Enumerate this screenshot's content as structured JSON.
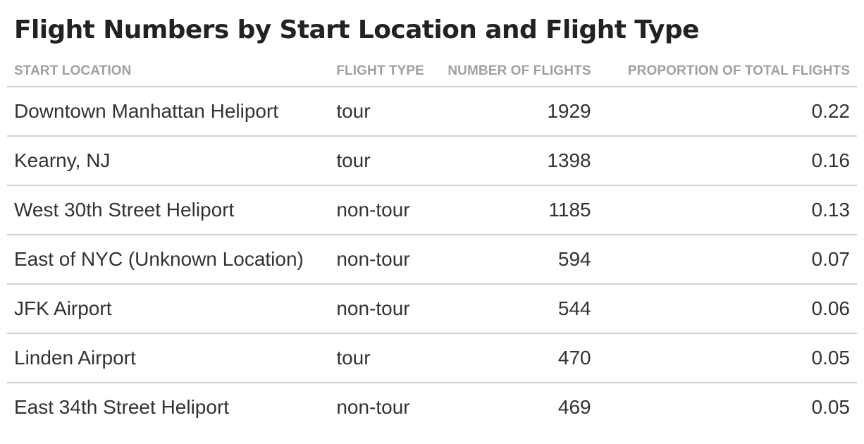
{
  "chart_data": {
    "type": "table",
    "title": "Flight Numbers by Start Location and Flight Type",
    "columns": [
      "START LOCATION",
      "FLIGHT TYPE",
      "NUMBER OF FLIGHTS",
      "PROPORTION OF TOTAL FLIGHTS"
    ],
    "rows": [
      {
        "start_location": "Downtown Manhattan Heliport",
        "flight_type": "tour",
        "number_of_flights": "1929",
        "proportion": "0.22"
      },
      {
        "start_location": "Kearny, NJ",
        "flight_type": "tour",
        "number_of_flights": "1398",
        "proportion": "0.16"
      },
      {
        "start_location": "West 30th Street Heliport",
        "flight_type": "non-tour",
        "number_of_flights": "1185",
        "proportion": "0.13"
      },
      {
        "start_location": "East of NYC (Unknown Location)",
        "flight_type": "non-tour",
        "number_of_flights": "594",
        "proportion": "0.07"
      },
      {
        "start_location": "JFK Airport",
        "flight_type": "non-tour",
        "number_of_flights": "544",
        "proportion": "0.06"
      },
      {
        "start_location": "Linden Airport",
        "flight_type": "tour",
        "number_of_flights": "470",
        "proportion": "0.05"
      },
      {
        "start_location": "East 34th Street Heliport",
        "flight_type": "non-tour",
        "number_of_flights": "469",
        "proportion": "0.05"
      }
    ]
  },
  "colors": {
    "title": "#222222",
    "header_text": "#a0a0a0",
    "cell_text": "#333333",
    "rule": "#d3d3d3"
  }
}
